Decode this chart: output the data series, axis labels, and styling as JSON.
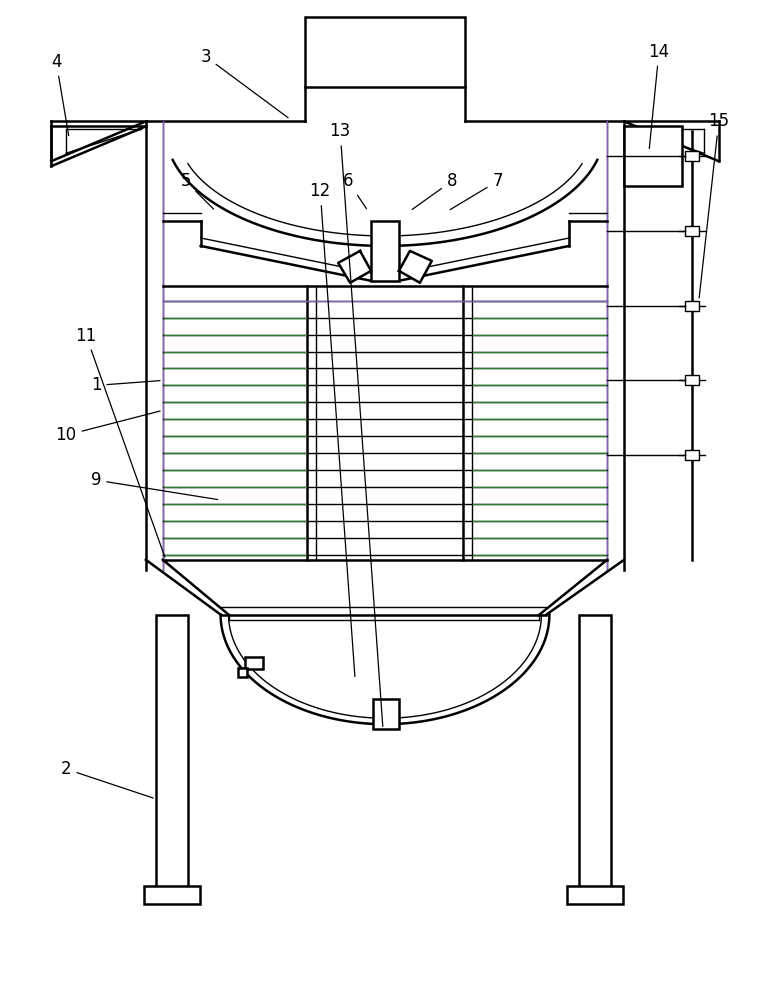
{
  "bg_color": "#ffffff",
  "line_color": "#000000",
  "purple_color": "#8B5FBF",
  "green_color": "#2E7D32",
  "label_fontsize": 12,
  "lw_main": 1.8,
  "lw_thin": 1.0,
  "lw_med": 1.3
}
